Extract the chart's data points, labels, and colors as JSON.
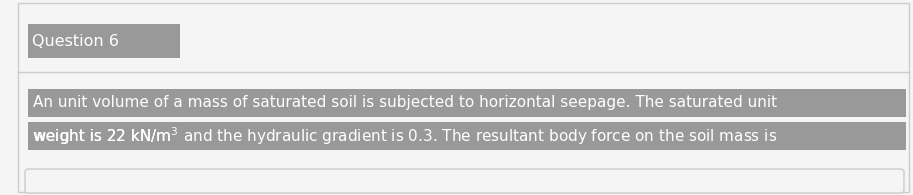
{
  "title": "Question 6",
  "line1": "An unit volume of a mass of saturated soil is subjected to horizontal seepage. The saturated unit",
  "line2_pre": "weight is 22 kN/m",
  "line2_sup": "3",
  "line2_post": " and the hydraulic gradient is 0.3. The resultant body force on the soil mass is",
  "bg_color": "#f5f5f5",
  "outer_border_color": "#cccccc",
  "title_bg_color": "#999999",
  "title_text_color": "#ffffff",
  "body_bg_color": "#999999",
  "body_text_color": "#ffffff",
  "title_fontsize": 11.5,
  "body_fontsize": 11.0,
  "fig_width": 9.13,
  "fig_height": 1.95,
  "dpi": 100
}
